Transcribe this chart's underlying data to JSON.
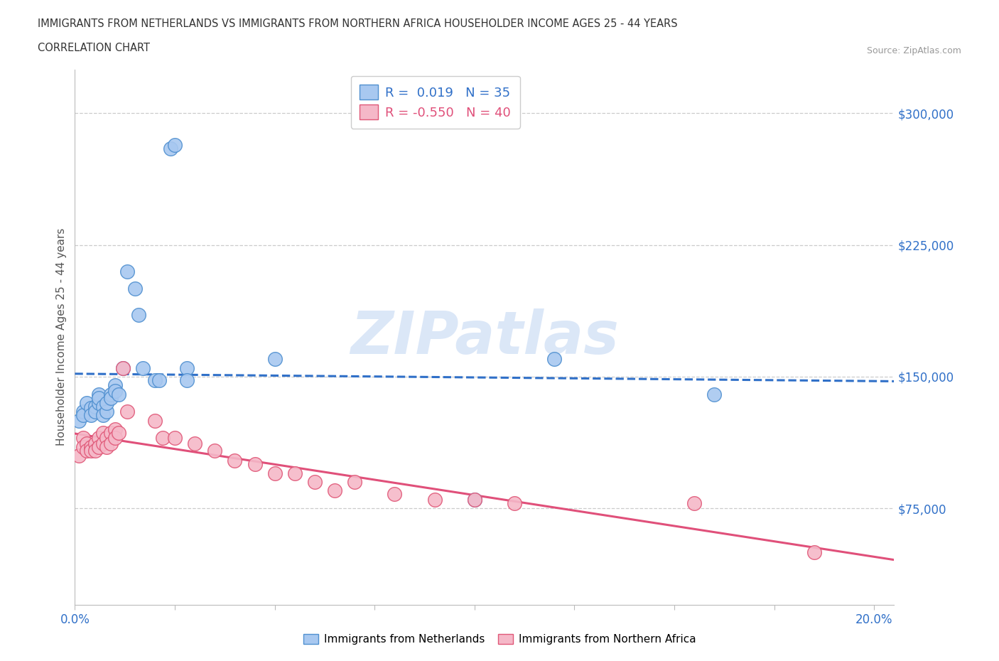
{
  "title_line1": "IMMIGRANTS FROM NETHERLANDS VS IMMIGRANTS FROM NORTHERN AFRICA HOUSEHOLDER INCOME AGES 25 - 44 YEARS",
  "title_line2": "CORRELATION CHART",
  "source_text": "Source: ZipAtlas.com",
  "ylabel": "Householder Income Ages 25 - 44 years",
  "xlim": [
    0.0,
    0.205
  ],
  "ylim": [
    20000,
    325000
  ],
  "xticks": [
    0.0,
    0.025,
    0.05,
    0.075,
    0.1,
    0.125,
    0.15,
    0.175,
    0.2
  ],
  "xticklabels": [
    "0.0%",
    "",
    "",
    "",
    "",
    "",
    "",
    "",
    "20.0%"
  ],
  "ytick_positions": [
    75000,
    150000,
    225000,
    300000
  ],
  "ytick_labels": [
    "$75,000",
    "$150,000",
    "$225,000",
    "$300,000"
  ],
  "hlines": [
    75000,
    150000,
    225000,
    300000
  ],
  "netherlands_color": "#a8c8f0",
  "northern_africa_color": "#f5b8c8",
  "netherlands_edge_color": "#5090d0",
  "northern_africa_edge_color": "#e05878",
  "netherlands_line_color": "#3070c8",
  "northern_africa_line_color": "#e0507a",
  "legend_R_netherlands": "0.019",
  "legend_N_netherlands": "35",
  "legend_R_northern_africa": "-0.550",
  "legend_N_northern_africa": "40",
  "netherlands_x": [
    0.001,
    0.002,
    0.002,
    0.003,
    0.004,
    0.004,
    0.005,
    0.005,
    0.006,
    0.006,
    0.006,
    0.007,
    0.007,
    0.008,
    0.008,
    0.009,
    0.009,
    0.01,
    0.01,
    0.011,
    0.012,
    0.013,
    0.015,
    0.016,
    0.017,
    0.02,
    0.021,
    0.024,
    0.025,
    0.028,
    0.028,
    0.05,
    0.1,
    0.12,
    0.16
  ],
  "netherlands_y": [
    125000,
    130000,
    128000,
    135000,
    132000,
    128000,
    133000,
    130000,
    135000,
    140000,
    138000,
    133000,
    128000,
    130000,
    135000,
    140000,
    138000,
    145000,
    142000,
    140000,
    155000,
    210000,
    200000,
    185000,
    155000,
    148000,
    148000,
    280000,
    282000,
    155000,
    148000,
    160000,
    80000,
    160000,
    140000
  ],
  "northern_africa_x": [
    0.001,
    0.002,
    0.002,
    0.003,
    0.003,
    0.004,
    0.004,
    0.005,
    0.005,
    0.006,
    0.006,
    0.007,
    0.007,
    0.008,
    0.008,
    0.009,
    0.009,
    0.01,
    0.01,
    0.011,
    0.012,
    0.013,
    0.02,
    0.022,
    0.025,
    0.03,
    0.035,
    0.04,
    0.045,
    0.05,
    0.055,
    0.06,
    0.065,
    0.07,
    0.08,
    0.09,
    0.1,
    0.11,
    0.155,
    0.185
  ],
  "northern_africa_y": [
    105000,
    115000,
    110000,
    112000,
    108000,
    110000,
    108000,
    112000,
    108000,
    115000,
    110000,
    118000,
    112000,
    115000,
    110000,
    118000,
    112000,
    120000,
    115000,
    118000,
    155000,
    130000,
    125000,
    115000,
    115000,
    112000,
    108000,
    102000,
    100000,
    95000,
    95000,
    90000,
    85000,
    90000,
    83000,
    80000,
    80000,
    78000,
    78000,
    50000
  ],
  "background_color": "#ffffff",
  "plot_bg_color": "#ffffff",
  "grid_color": "#cccccc",
  "watermark_color": "#ccddf5",
  "watermark_alpha": 0.7
}
